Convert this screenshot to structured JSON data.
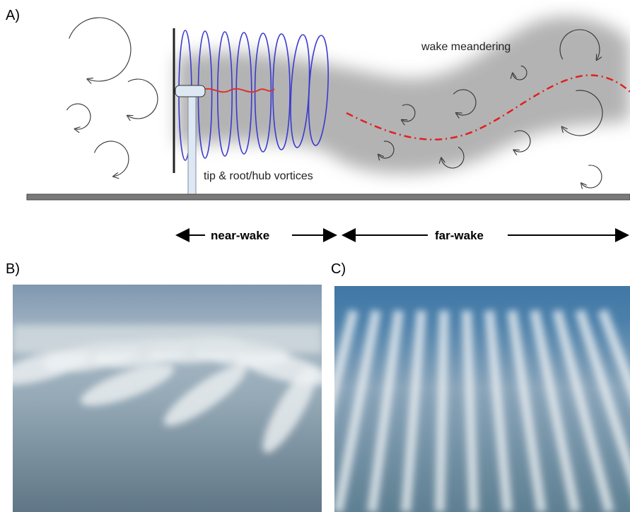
{
  "panel_a": {
    "label": "A)",
    "annotations": [
      "wake meandering",
      "tip & root/hub vortices"
    ],
    "regions": [
      "near-wake",
      "far-wake"
    ]
  },
  "panel_b": {
    "label": "B)"
  },
  "panel_c": {
    "label": "C)"
  }
}
